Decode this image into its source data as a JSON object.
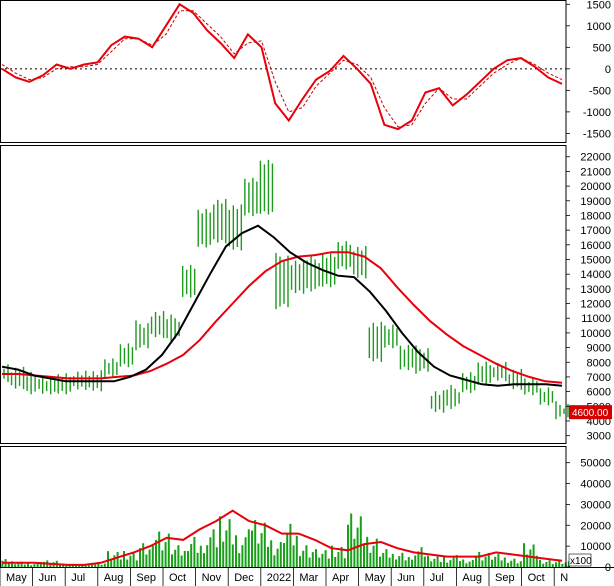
{
  "colors": {
    "background": "#ffffff",
    "frame": "#000000",
    "grid_dot": "#000000",
    "macd_line": "#e8000b",
    "signal_line": "#c80000",
    "ma_fast": "#000000",
    "ma_slow": "#e8000b",
    "candle": "#1e9a1e",
    "volume_bar": "#18a018",
    "volume_ma": "#e8000b",
    "price_badge_bg": "#d40000",
    "price_badge_text": "#ffffff"
  },
  "chart_data": [
    {
      "type": "line",
      "panel": "oscillator",
      "ylim": [
        -1700,
        1600
      ],
      "yticks": [
        "1500",
        "1000",
        "500",
        "0",
        "-500",
        "-1000",
        "-1500"
      ],
      "ytick_values": [
        1500,
        1000,
        500,
        0,
        -500,
        -1000,
        -1500
      ],
      "zero_line_dotted": true,
      "series": [
        {
          "role": "oscillator",
          "values": [
            0,
            -200,
            -300,
            -150,
            100,
            0,
            100,
            150,
            550,
            750,
            700,
            500,
            1000,
            1500,
            1300,
            900,
            600,
            250,
            800,
            500,
            -800,
            -1200,
            -700,
            -250,
            -50,
            300,
            0,
            -350,
            -1300,
            -1400,
            -1200,
            -550,
            -450,
            -850,
            -600,
            -300,
            0,
            200,
            250,
            50,
            -200,
            -350
          ]
        },
        {
          "role": "signal",
          "values": [
            100,
            -100,
            -250,
            -200,
            0,
            50,
            50,
            100,
            400,
            700,
            700,
            550,
            800,
            1350,
            1350,
            1050,
            750,
            350,
            600,
            650,
            -300,
            -1000,
            -900,
            -400,
            -100,
            200,
            100,
            -200,
            -900,
            -1350,
            -1300,
            -800,
            -450,
            -700,
            -700,
            -400,
            -100,
            100,
            250,
            100,
            -100,
            -250
          ]
        }
      ]
    },
    {
      "type": "candlestick",
      "panel": "price",
      "ylim": [
        2500,
        22800
      ],
      "yticks": [
        "22000",
        "21000",
        "20000",
        "19000",
        "18000",
        "17000",
        "16000",
        "15000",
        "14000",
        "13000",
        "12000",
        "11000",
        "10000",
        "9000",
        "8000",
        "7000",
        "6000",
        "5000",
        "4000",
        "3000"
      ],
      "ytick_values": [
        22000,
        21000,
        20000,
        19000,
        18000,
        17000,
        16000,
        15000,
        14000,
        13000,
        12000,
        11000,
        10000,
        9000,
        8000,
        7000,
        6000,
        5000,
        4000,
        3000
      ],
      "last_price_label": "4600.00",
      "last_price": 4600,
      "close": [
        7200,
        6900,
        6500,
        6300,
        6400,
        6700,
        6600,
        7500,
        8300,
        9800,
        10500,
        10200,
        13500,
        17200,
        17100,
        16800,
        19200,
        20500,
        13800,
        13900,
        14000,
        14200,
        15300,
        15000,
        9000,
        9800,
        8300,
        8200,
        5200,
        5600,
        6600,
        7200,
        7400,
        6800,
        6300,
        5600,
        4600
      ],
      "high": [
        7800,
        7500,
        7100,
        6900,
        7000,
        7300,
        7200,
        8200,
        9100,
        10600,
        11300,
        11000,
        14500,
        18200,
        19000,
        18500,
        20500,
        21600,
        15200,
        14800,
        15000,
        15300,
        16000,
        15800,
        10500,
        10500,
        9000,
        8900,
        5900,
        6200,
        7200,
        7800,
        7900,
        7300,
        6900,
        6100,
        5100
      ],
      "low": [
        6700,
        6300,
        6000,
        5900,
        6000,
        6200,
        6200,
        7000,
        7800,
        9000,
        9800,
        9600,
        12500,
        16000,
        16200,
        15800,
        18000,
        18200,
        11800,
        12800,
        13000,
        13200,
        14500,
        13800,
        8200,
        9000,
        7600,
        7400,
        4700,
        5000,
        6000,
        6600,
        6800,
        6300,
        5800,
        5200,
        4300
      ],
      "series": [
        {
          "role": "fast-ma",
          "values": [
            7700,
            7500,
            7100,
            6900,
            6700,
            6700,
            6700,
            6700,
            7000,
            7500,
            8500,
            10000,
            12000,
            14000,
            15900,
            16800,
            17300,
            16500,
            15500,
            14800,
            14300,
            13900,
            13800,
            12800,
            11500,
            10000,
            8700,
            7700,
            7100,
            6800,
            6500,
            6400,
            6500,
            6500,
            6500,
            6400
          ]
        },
        {
          "role": "slow-ma",
          "values": [
            7200,
            7200,
            7100,
            7000,
            6900,
            6900,
            6900,
            7000,
            7100,
            7400,
            7900,
            8500,
            9500,
            10800,
            12000,
            13200,
            14200,
            14900,
            15200,
            15300,
            15500,
            15500,
            15200,
            14400,
            13100,
            11900,
            10800,
            9900,
            9100,
            8500,
            7900,
            7400,
            7000,
            6700,
            6600
          ]
        }
      ]
    },
    {
      "type": "bar",
      "panel": "volume",
      "ylim": [
        0,
        58000
      ],
      "yticks": [
        "50000",
        "40000",
        "30000",
        "20000",
        "10000",
        "0"
      ],
      "ytick_values": [
        50000,
        40000,
        30000,
        20000,
        10000,
        0
      ],
      "unit_label": "x100",
      "series": [
        {
          "role": "volume",
          "values": [
            4000,
            3000,
            2500,
            3500,
            2000,
            1500,
            3000,
            8000,
            9000,
            12000,
            20000,
            11000,
            17000,
            19000,
            27000,
            19000,
            25000,
            16000,
            23000,
            13000,
            9000,
            12000,
            27000,
            17000,
            9000,
            8000,
            10000,
            6000,
            6000,
            4000,
            9000,
            7000,
            5000,
            12000,
            4000,
            3000
          ]
        },
        {
          "role": "volume-ma",
          "values": [
            2000,
            2000,
            2000,
            1500,
            1000,
            1000,
            2000,
            4500,
            7000,
            10000,
            14000,
            13000,
            18000,
            22000,
            27000,
            22000,
            20000,
            16000,
            16000,
            13000,
            9000,
            8000,
            11000,
            12000,
            9000,
            7000,
            6000,
            5000,
            5000,
            5000,
            7000,
            6000,
            5000,
            4000,
            3000
          ]
        }
      ]
    }
  ],
  "x_axis": {
    "labels": [
      "May",
      "Jun",
      "Jul",
      "Aug",
      "Sep",
      "Oct",
      "Nov",
      "Dec",
      "2022",
      "Mar",
      "Apr",
      "May",
      "Jun",
      "Jul",
      "Aug",
      "Sep",
      "Oct",
      "N"
    ]
  }
}
